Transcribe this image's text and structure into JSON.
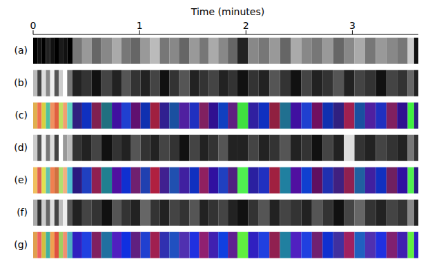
{
  "chart_data": {
    "type": "bar",
    "orientation": "horizontal",
    "stacked": true,
    "x_label": "Time (minutes)",
    "categories": [
      "(a)",
      "(b)",
      "(c)",
      "(d)",
      "(e)",
      "(f)",
      "(g)"
    ],
    "xlim": [
      0,
      3.62
    ],
    "xticks": [
      0,
      1,
      2,
      3
    ],
    "segments": [
      0.04,
      0.04,
      0.04,
      0.04,
      0.04,
      0.04,
      0.04,
      0.04,
      0.05,
      0.09,
      0.09,
      0.09,
      0.1,
      0.09,
      0.09,
      0.09,
      0.09,
      0.09,
      0.09,
      0.09,
      0.1,
      0.09,
      0.09,
      0.09,
      0.09,
      0.09,
      0.1,
      0.1,
      0.1,
      0.1,
      0.1,
      0.1,
      0.1,
      0.1,
      0.1,
      0.1,
      0.1,
      0.1,
      0.1,
      0.1,
      0.1,
      0.1,
      0.06,
      0.04
    ],
    "colors": [
      [
        "#000",
        "#111",
        "#000",
        "#222",
        "#111",
        "#000",
        "#1a1a1a",
        "#111",
        "#000",
        "#777",
        "#999",
        "#666",
        "#888",
        "#aaa",
        "#777",
        "#666",
        "#999",
        "#bbb",
        "#777",
        "#888",
        "#666",
        "#999",
        "#777",
        "#aaa",
        "#888",
        "#666",
        "#222",
        "#888",
        "#777",
        "#999",
        "#666",
        "#aaa",
        "#888",
        "#777",
        "#999",
        "#666",
        "#888",
        "#aaa",
        "#777",
        "#999",
        "#888",
        "#777",
        "#ccc",
        "#111"
      ],
      [
        "#bbb",
        "#444",
        "#ddd",
        "#888",
        "#eee",
        "#555",
        "#ccc",
        "#fff",
        "#777",
        "#222",
        "#333",
        "#111",
        "#444",
        "#222",
        "#555",
        "#333",
        "#222",
        "#444",
        "#111",
        "#333",
        "#555",
        "#222",
        "#333",
        "#444",
        "#222",
        "#333",
        "#111",
        "#333",
        "#222",
        "#555",
        "#333",
        "#111",
        "#444",
        "#222",
        "#333",
        "#555",
        "#222",
        "#444",
        "#333",
        "#111",
        "#444",
        "#333",
        "#666",
        "#222"
      ],
      [
        "#e0b050",
        "#f07050",
        "#d8d040",
        "#50c0a0",
        "#f09060",
        "#e06040",
        "#c0e060",
        "#f0a070",
        "#60d0c0",
        "#302080",
        "#1030c0",
        "#802050",
        "#207080",
        "#4010a0",
        "#2040d0",
        "#601070",
        "#1030b0",
        "#a02040",
        "#302090",
        "#1a50a0",
        "#5020a0",
        "#2030c0",
        "#802060",
        "#301090",
        "#1040c0",
        "#602080",
        "#40e040",
        "#3020a0",
        "#1030c0",
        "#902040",
        "#207090",
        "#4010a0",
        "#2040d0",
        "#701060",
        "#1030b0",
        "#302080",
        "#a02050",
        "#1a50a0",
        "#5020a0",
        "#2030c0",
        "#802060",
        "#301090",
        "#40f040",
        "#302080"
      ],
      [
        "#ccc",
        "#555",
        "#eee",
        "#777",
        "#ddd",
        "#444",
        "#fff",
        "#999",
        "#bbb",
        "#333",
        "#222",
        "#444",
        "#111",
        "#333",
        "#222",
        "#555",
        "#333",
        "#222",
        "#444",
        "#333",
        "#111",
        "#444",
        "#222",
        "#333",
        "#555",
        "#222",
        "#222",
        "#444",
        "#222",
        "#333",
        "#555",
        "#222",
        "#333",
        "#111",
        "#444",
        "#222",
        "#ddd",
        "#333",
        "#222",
        "#444",
        "#333",
        "#222",
        "#777",
        "#333"
      ],
      [
        "#f0c060",
        "#e06050",
        "#e0e050",
        "#60c0b0",
        "#f08050",
        "#d07040",
        "#b0e070",
        "#f0b080",
        "#50c0d0",
        "#2a1a80",
        "#2040c0",
        "#902050",
        "#208090",
        "#5010a0",
        "#1030d0",
        "#702070",
        "#2040b0",
        "#b02040",
        "#402090",
        "#2050b0",
        "#4020a0",
        "#1030c0",
        "#902060",
        "#3010a0",
        "#2040c0",
        "#502080",
        "#50f050",
        "#2a20a0",
        "#2030c0",
        "#a02040",
        "#2080a0",
        "#5010a0",
        "#1040d0",
        "#601060",
        "#2030b0",
        "#402080",
        "#902050",
        "#2060a0",
        "#4020a0",
        "#1030c0",
        "#702060",
        "#3010a0",
        "#50f050",
        "#2a1a80"
      ],
      [
        "#aaa",
        "#333",
        "#ccc",
        "#666",
        "#ddd",
        "#444",
        "#bbb",
        "#eee",
        "#555",
        "#222",
        "#444",
        "#333",
        "#111",
        "#555",
        "#333",
        "#222",
        "#666",
        "#333",
        "#222",
        "#444",
        "#333",
        "#555",
        "#222",
        "#333",
        "#444",
        "#222",
        "#111",
        "#333",
        "#555",
        "#222",
        "#444",
        "#333",
        "#222",
        "#555",
        "#333",
        "#111",
        "#444",
        "#666",
        "#333",
        "#222",
        "#444",
        "#333",
        "#888",
        "#222"
      ],
      [
        "#e0a050",
        "#f06060",
        "#d0c040",
        "#40b0a0",
        "#f0a050",
        "#e05040",
        "#a0d060",
        "#f09070",
        "#50b0c0",
        "#3020c0",
        "#2040e0",
        "#802060",
        "#2070a0",
        "#5020c0",
        "#1030e0",
        "#602080",
        "#2040d0",
        "#a02050",
        "#3030b0",
        "#2050c0",
        "#5030b0",
        "#2030e0",
        "#902070",
        "#4020b0",
        "#1040e0",
        "#602090",
        "#60f040",
        "#3020c0",
        "#2040e0",
        "#902050",
        "#2080a0",
        "#5020c0",
        "#2040e0",
        "#702070",
        "#1030d0",
        "#4030a0",
        "#a02060",
        "#2060c0",
        "#5030b0",
        "#2030e0",
        "#802070",
        "#4020b0",
        "#60f040",
        "#3020c0"
      ]
    ]
  }
}
